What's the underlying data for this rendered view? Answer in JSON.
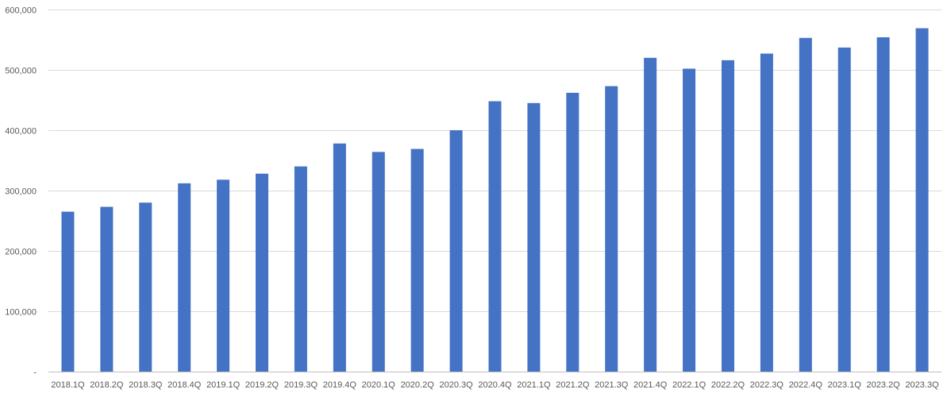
{
  "chart_data": {
    "type": "bar",
    "title": "",
    "xlabel": "",
    "ylabel": "",
    "categories": [
      "2018.1Q",
      "2018.2Q",
      "2018.3Q",
      "2018.4Q",
      "2019.1Q",
      "2019.2Q",
      "2019.3Q",
      "2019.4Q",
      "2020.1Q",
      "2020.2Q",
      "2020.3Q",
      "2020.4Q",
      "2021.1Q",
      "2021.2Q",
      "2021.3Q",
      "2021.4Q",
      "2022.1Q",
      "2022.2Q",
      "2022.3Q",
      "2022.4Q",
      "2023.1Q",
      "2023.2Q",
      "2023.3Q"
    ],
    "values": [
      265000,
      273000,
      280000,
      312000,
      318000,
      328000,
      340000,
      378000,
      364000,
      369000,
      400000,
      448000,
      445000,
      462000,
      473000,
      520000,
      502000,
      516000,
      527000,
      553000,
      537000,
      554000,
      569000
    ],
    "ylim": [
      0,
      600000
    ],
    "y_ticks": [
      0,
      100000,
      200000,
      300000,
      400000,
      500000,
      600000
    ],
    "y_tick_labels": [
      "-",
      "100,000",
      "200,000",
      "300,000",
      "400,000",
      "500,000",
      "600,000"
    ],
    "grid": true,
    "legend": "none",
    "bar_color": "#4472c4"
  }
}
